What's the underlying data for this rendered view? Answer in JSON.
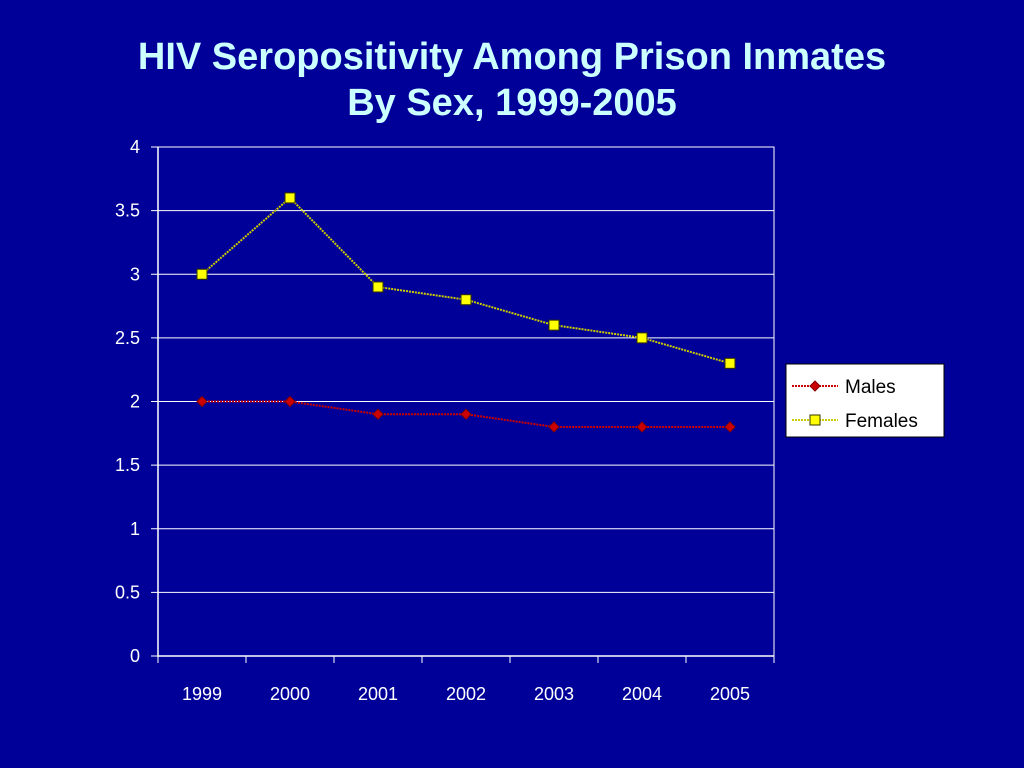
{
  "chart_data": {
    "type": "line",
    "title_line1": "HIV Seropositivity Among Prison Inmates",
    "title_line2": "By Sex, 1999-2005",
    "categories": [
      "1999",
      "2000",
      "2001",
      "2002",
      "2003",
      "2004",
      "2005"
    ],
    "y_ticks": [
      "0",
      "0.5",
      "1",
      "1.5",
      "2",
      "2.5",
      "3",
      "3.5",
      "4"
    ],
    "ylim": [
      0,
      4
    ],
    "grid": true,
    "legend_position": "right",
    "series": [
      {
        "name": "Males",
        "values": [
          2.0,
          2.0,
          1.9,
          1.9,
          1.8,
          1.8,
          1.8
        ],
        "color": "#CC0000",
        "marker": "diamond"
      },
      {
        "name": "Females",
        "values": [
          3.0,
          3.6,
          2.9,
          2.8,
          2.6,
          2.5,
          2.3
        ],
        "color": "#FFFF00",
        "marker": "square"
      }
    ]
  },
  "colors": {
    "background": "#000099",
    "title": "#CCFFFF",
    "gridline": "#FFFFFF",
    "axis": "#FFFFFF",
    "legend_bg": "#FFFFFF"
  }
}
